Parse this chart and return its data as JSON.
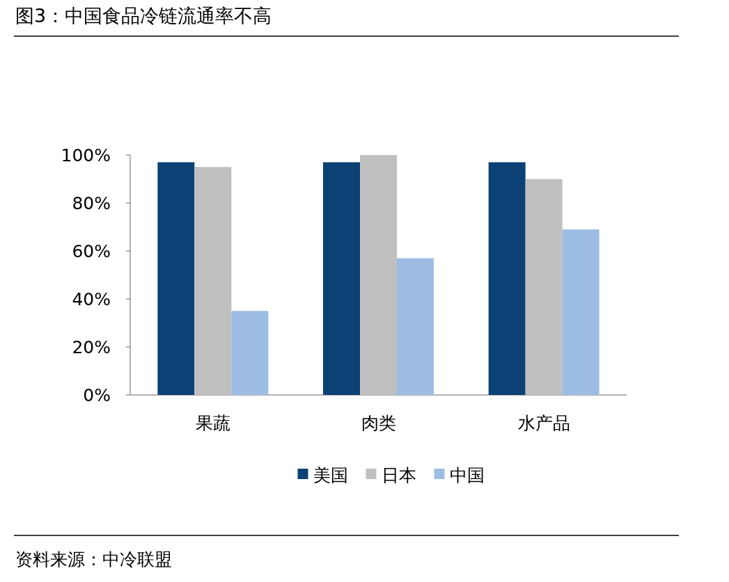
{
  "chart_data": {
    "type": "bar",
    "title": "图3：中国食品冷链流通率不高",
    "categories": [
      "果蔬",
      "肉类",
      "水产品"
    ],
    "series": [
      {
        "name": "美国",
        "color": "#0b4175",
        "values": [
          97,
          97,
          97
        ]
      },
      {
        "name": "日本",
        "color": "#bfbfbf",
        "values": [
          95,
          100,
          90
        ]
      },
      {
        "name": "中国",
        "color": "#9dbde3",
        "values": [
          35,
          57,
          69
        ]
      }
    ],
    "ylim": [
      0,
      100
    ],
    "yticks": [
      {
        "value": 0,
        "label": "0%"
      },
      {
        "value": 20,
        "label": "20%"
      },
      {
        "value": 40,
        "label": "40%"
      },
      {
        "value": 60,
        "label": "60%"
      },
      {
        "value": 80,
        "label": "80%"
      },
      {
        "value": 100,
        "label": "100%"
      }
    ],
    "legend": "bottom",
    "annotations": [
      "资料来源：中冷联盟"
    ]
  }
}
